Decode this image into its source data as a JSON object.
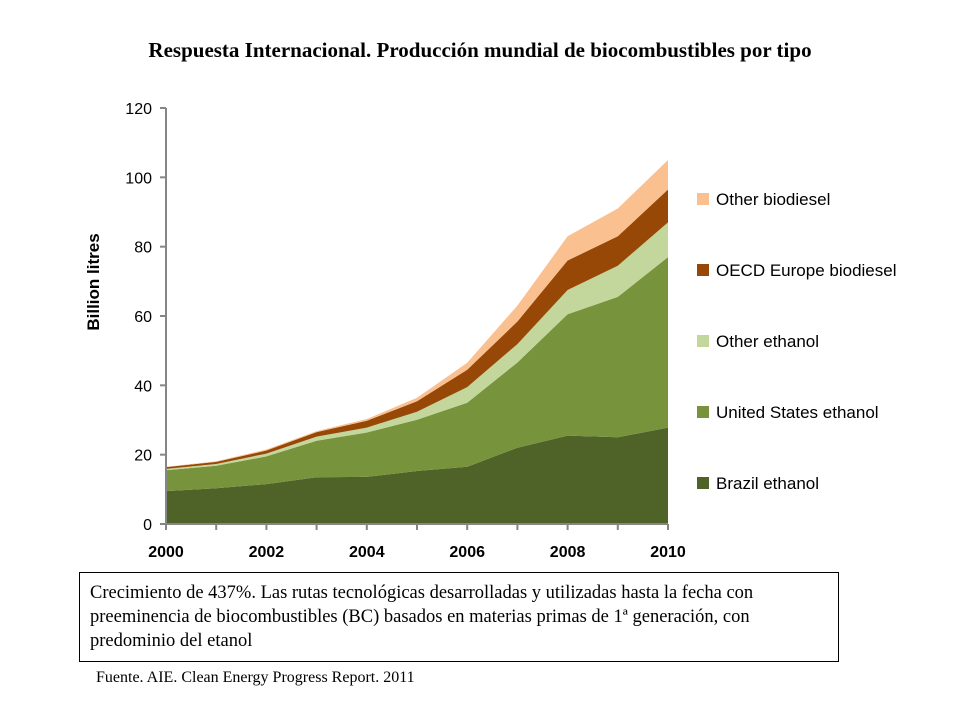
{
  "page": {
    "title": "Respuesta Internacional. Producción mundial de biocombustibles por tipo",
    "note": "Crecimiento de 437%. Las rutas tecnológicas desarrolladas y utilizadas hasta la fecha con preeminencia de biocombustibles (BC) basados en materias primas de 1ª generación, con predominio del etanol",
    "source": "Fuente. AIE. Clean Energy Progress Report. 2011"
  },
  "chart_data": {
    "type": "area",
    "stacked": true,
    "title": "",
    "xlabel": "",
    "ylabel": "Billion litres",
    "x": [
      2000,
      2001,
      2002,
      2003,
      2004,
      2005,
      2006,
      2007,
      2008,
      2009,
      2010
    ],
    "xticks": [
      "2000",
      "2002",
      "2004",
      "2006",
      "2008",
      "2010"
    ],
    "yticks": [
      "0",
      "20",
      "40",
      "60",
      "80",
      "100",
      "120"
    ],
    "ylim": [
      0,
      120
    ],
    "legend_position": "right",
    "series": [
      {
        "name": "Brazil ethanol",
        "color": "#4f6228",
        "values": [
          9.5,
          10.3,
          11.5,
          13.5,
          13.6,
          15.3,
          16.5,
          22,
          25.5,
          25,
          27.8
        ]
      },
      {
        "name": "United States ethanol",
        "color": "#77933c",
        "values": [
          6.0,
          6.5,
          8.0,
          10.5,
          12.8,
          14.8,
          18.5,
          24.6,
          35.0,
          40.5,
          49.2
        ]
      },
      {
        "name": "Other ethanol",
        "color": "#c3d69b",
        "values": [
          0.4,
          0.5,
          0.8,
          1.2,
          1.4,
          2.3,
          4.5,
          5.3,
          7.0,
          9.0,
          10.0
        ]
      },
      {
        "name": "OECD Europe biodiesel",
        "color": "#974806",
        "values": [
          0.5,
          0.6,
          0.9,
          1.3,
          2.0,
          3.0,
          5.0,
          6.5,
          8.5,
          8.5,
          9.5
        ]
      },
      {
        "name": "Other biodiesel",
        "color": "#fac090",
        "values": [
          0.1,
          0.2,
          0.3,
          0.3,
          0.5,
          1.0,
          2.0,
          4.6,
          7.0,
          8.0,
          8.5
        ]
      }
    ]
  }
}
